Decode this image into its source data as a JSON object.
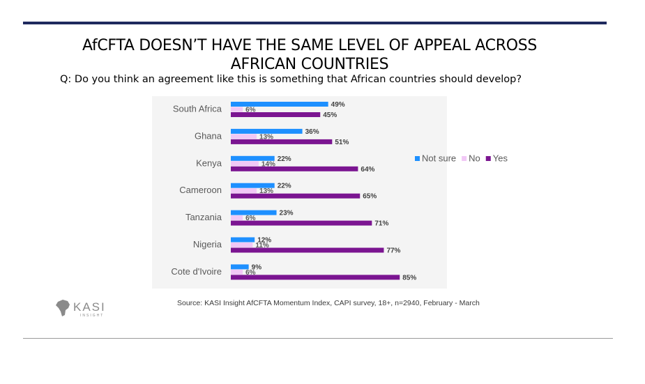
{
  "header": {
    "title_line1": "AfCFTA DOESN’T HAVE THE SAME LEVEL OF APPEAL ACROSS",
    "title_line2": "AFRICAN COUNTRIES",
    "question": "Q: Do you think an agreement like this is something that African countries should develop?"
  },
  "footer": {
    "source": "Source: KASI Insight AfCFTA Momentum Index, CAPI survey, 18+, n=2940, February - March",
    "logo_text": "KASI",
    "logo_subtext": "INSIGHT"
  },
  "colors": {
    "not_sure": "#1e90ff",
    "no": "#f1c8f6",
    "yes": "#7b1591",
    "rule": "#1f2a5e"
  },
  "chart_data": {
    "type": "bar",
    "orientation": "horizontal",
    "title": "",
    "xlabel": "",
    "ylabel": "",
    "xlim": [
      0,
      100
    ],
    "grid": false,
    "legend_position": "right",
    "categories": [
      "South Africa",
      "Ghana",
      "Kenya",
      "Cameroon",
      "Tanzania",
      "Nigeria",
      "Cote d'Ivoire"
    ],
    "series": [
      {
        "name": "Not sure",
        "values": [
          49,
          36,
          22,
          22,
          23,
          12,
          9
        ]
      },
      {
        "name": "No",
        "values": [
          6,
          13,
          14,
          13,
          6,
          11,
          6
        ]
      },
      {
        "name": "Yes",
        "values": [
          45,
          51,
          64,
          65,
          71,
          77,
          85
        ]
      }
    ],
    "value_suffix": "%"
  }
}
